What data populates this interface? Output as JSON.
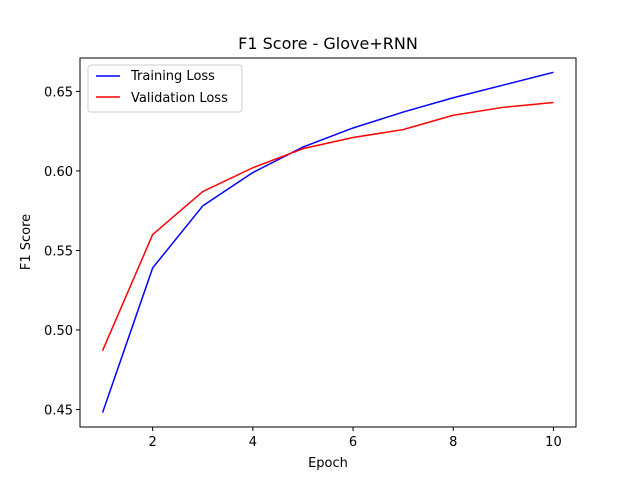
{
  "chart_data": {
    "type": "line",
    "title": "F1 Score - Glove+RNN",
    "xlabel": "Epoch",
    "ylabel": "F1 Score",
    "x": [
      1,
      2,
      3,
      4,
      5,
      6,
      7,
      8,
      9,
      10
    ],
    "xlim": [
      0.55,
      10.45
    ],
    "ylim": [
      0.439,
      0.671
    ],
    "xticks": [
      2,
      4,
      6,
      8,
      10
    ],
    "yticks": [
      0.45,
      0.5,
      0.55,
      0.6,
      0.65
    ],
    "ytick_labels": [
      "0.45",
      "0.50",
      "0.55",
      "0.60",
      "0.65"
    ],
    "grid": false,
    "legend_position": "upper-left",
    "series": [
      {
        "name": "Training Loss",
        "color": "#0000ff",
        "values": [
          0.448,
          0.539,
          0.578,
          0.599,
          0.615,
          0.627,
          0.637,
          0.646,
          0.654,
          0.662
        ]
      },
      {
        "name": "Validation Loss",
        "color": "#ff0000",
        "values": [
          0.487,
          0.56,
          0.587,
          0.602,
          0.614,
          0.621,
          0.626,
          0.635,
          0.64,
          0.643
        ]
      }
    ]
  }
}
